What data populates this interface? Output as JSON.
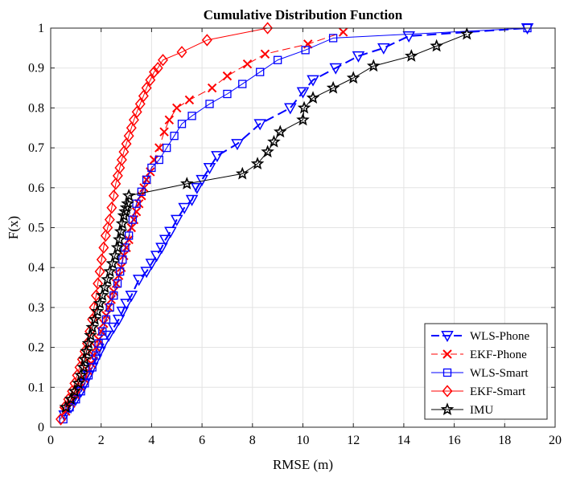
{
  "chart_data": {
    "type": "line",
    "title": "Cumulative Distribution Function",
    "xlabel": "RMSE (m)",
    "ylabel": "F(x)",
    "xlim": [
      0,
      20
    ],
    "ylim": [
      0,
      1
    ],
    "xticks": [
      0,
      2,
      4,
      6,
      8,
      10,
      12,
      14,
      16,
      18,
      20
    ],
    "yticks": [
      0,
      0.1,
      0.2,
      0.3,
      0.4,
      0.5,
      0.6,
      0.7,
      0.8,
      0.9,
      1
    ],
    "xtick_labels": [
      "0",
      "2",
      "4",
      "6",
      "8",
      "10",
      "12",
      "14",
      "16",
      "18",
      "20"
    ],
    "ytick_labels": [
      "0",
      "0.1",
      "0.2",
      "0.3",
      "0.4",
      "0.5",
      "0.6",
      "0.7",
      "0.8",
      "0.9",
      "1"
    ],
    "grid": true,
    "legend_position": "bottom-right",
    "series": [
      {
        "name": "WLS-Phone",
        "color": "#0000ff",
        "marker": "triangle-down",
        "line_style": "dashed",
        "line_width": 2,
        "x": [
          0.55,
          0.8,
          1.0,
          1.2,
          1.35,
          1.5,
          1.65,
          1.8,
          1.95,
          2.1,
          2.3,
          2.5,
          2.7,
          2.85,
          3.0,
          3.2,
          3.5,
          3.8,
          4.0,
          4.2,
          4.4,
          4.55,
          4.75,
          5.0,
          5.3,
          5.6,
          5.8,
          6.0,
          6.3,
          6.6,
          7.4,
          8.3,
          9.5,
          10.0,
          10.4,
          11.3,
          12.2,
          13.2,
          14.2,
          18.9
        ],
        "y": [
          0.03,
          0.05,
          0.07,
          0.09,
          0.11,
          0.13,
          0.15,
          0.17,
          0.19,
          0.21,
          0.23,
          0.25,
          0.27,
          0.29,
          0.31,
          0.33,
          0.37,
          0.39,
          0.41,
          0.43,
          0.45,
          0.47,
          0.49,
          0.52,
          0.55,
          0.57,
          0.6,
          0.62,
          0.65,
          0.68,
          0.71,
          0.76,
          0.8,
          0.84,
          0.87,
          0.9,
          0.93,
          0.95,
          0.98,
          1.0
        ]
      },
      {
        "name": "EKF-Phone",
        "color": "#ff0000",
        "marker": "x",
        "line_style": "dashed",
        "line_width": 1,
        "x": [
          0.6,
          0.8,
          1.0,
          1.2,
          1.35,
          1.5,
          1.6,
          1.7,
          1.8,
          1.9,
          2.0,
          2.1,
          2.2,
          2.3,
          2.4,
          2.5,
          2.6,
          2.7,
          2.8,
          2.9,
          3.0,
          3.1,
          3.2,
          3.3,
          3.4,
          3.5,
          3.6,
          3.7,
          3.8,
          3.95,
          4.1,
          4.3,
          4.5,
          4.7,
          5.0,
          5.5,
          6.4,
          7.0,
          7.8,
          8.5,
          10.2,
          11.6
        ],
        "y": [
          0.04,
          0.06,
          0.08,
          0.1,
          0.12,
          0.14,
          0.16,
          0.18,
          0.2,
          0.22,
          0.24,
          0.26,
          0.28,
          0.3,
          0.32,
          0.34,
          0.36,
          0.38,
          0.4,
          0.43,
          0.45,
          0.47,
          0.5,
          0.52,
          0.54,
          0.56,
          0.58,
          0.6,
          0.62,
          0.64,
          0.67,
          0.7,
          0.74,
          0.77,
          0.8,
          0.82,
          0.85,
          0.88,
          0.91,
          0.935,
          0.96,
          0.99
        ]
      },
      {
        "name": "WLS-Smart",
        "color": "#0000ff",
        "marker": "square",
        "line_style": "solid",
        "line_width": 1,
        "x": [
          0.5,
          0.75,
          1.0,
          1.2,
          1.35,
          1.5,
          1.65,
          1.8,
          1.9,
          2.05,
          2.2,
          2.35,
          2.5,
          2.65,
          2.75,
          2.85,
          2.95,
          3.1,
          3.25,
          3.4,
          3.6,
          3.8,
          4.0,
          4.3,
          4.6,
          4.9,
          5.2,
          5.6,
          6.3,
          7.0,
          7.6,
          8.3,
          9.0,
          10.1,
          11.2,
          18.9
        ],
        "y": [
          0.02,
          0.05,
          0.07,
          0.09,
          0.11,
          0.13,
          0.15,
          0.18,
          0.21,
          0.24,
          0.27,
          0.3,
          0.33,
          0.36,
          0.39,
          0.42,
          0.45,
          0.48,
          0.52,
          0.56,
          0.59,
          0.62,
          0.65,
          0.67,
          0.7,
          0.73,
          0.76,
          0.78,
          0.81,
          0.835,
          0.86,
          0.89,
          0.92,
          0.945,
          0.975,
          1.0
        ]
      },
      {
        "name": "EKF-Smart",
        "color": "#ff0000",
        "marker": "diamond",
        "line_style": "solid",
        "line_width": 1,
        "x": [
          0.4,
          0.55,
          0.7,
          0.85,
          0.95,
          1.05,
          1.15,
          1.25,
          1.35,
          1.45,
          1.55,
          1.65,
          1.72,
          1.8,
          1.87,
          1.95,
          2.02,
          2.1,
          2.18,
          2.26,
          2.34,
          2.42,
          2.5,
          2.58,
          2.66,
          2.74,
          2.82,
          2.9,
          3.0,
          3.1,
          3.2,
          3.3,
          3.42,
          3.55,
          3.68,
          3.8,
          3.95,
          4.1,
          4.25,
          4.45,
          5.2,
          6.2,
          8.6
        ],
        "y": [
          0.02,
          0.05,
          0.07,
          0.09,
          0.11,
          0.13,
          0.15,
          0.17,
          0.19,
          0.21,
          0.24,
          0.27,
          0.3,
          0.33,
          0.36,
          0.39,
          0.42,
          0.45,
          0.48,
          0.5,
          0.52,
          0.55,
          0.58,
          0.61,
          0.63,
          0.65,
          0.67,
          0.69,
          0.71,
          0.73,
          0.75,
          0.77,
          0.79,
          0.81,
          0.83,
          0.85,
          0.87,
          0.89,
          0.9,
          0.92,
          0.94,
          0.97,
          1.0
        ]
      },
      {
        "name": "IMU",
        "color": "#000000",
        "marker": "star",
        "line_style": "solid",
        "line_width": 1,
        "x": [
          0.6,
          0.8,
          0.95,
          1.1,
          1.2,
          1.3,
          1.35,
          1.42,
          1.5,
          1.58,
          1.65,
          1.75,
          1.85,
          1.95,
          2.05,
          2.15,
          2.25,
          2.35,
          2.45,
          2.55,
          2.65,
          2.72,
          2.78,
          2.84,
          2.9,
          2.95,
          3.0,
          3.05,
          3.1,
          5.4,
          7.6,
          8.2,
          8.6,
          8.85,
          9.1,
          10.0,
          10.05,
          10.4,
          11.2,
          12.0,
          12.8,
          14.3,
          15.3,
          16.5
        ],
        "y": [
          0.05,
          0.07,
          0.09,
          0.11,
          0.13,
          0.15,
          0.17,
          0.19,
          0.21,
          0.23,
          0.25,
          0.27,
          0.29,
          0.31,
          0.33,
          0.35,
          0.37,
          0.39,
          0.41,
          0.43,
          0.45,
          0.47,
          0.49,
          0.51,
          0.53,
          0.54,
          0.55,
          0.56,
          0.58,
          0.61,
          0.635,
          0.66,
          0.69,
          0.715,
          0.74,
          0.77,
          0.8,
          0.825,
          0.85,
          0.875,
          0.905,
          0.93,
          0.955,
          0.985
        ]
      }
    ]
  }
}
